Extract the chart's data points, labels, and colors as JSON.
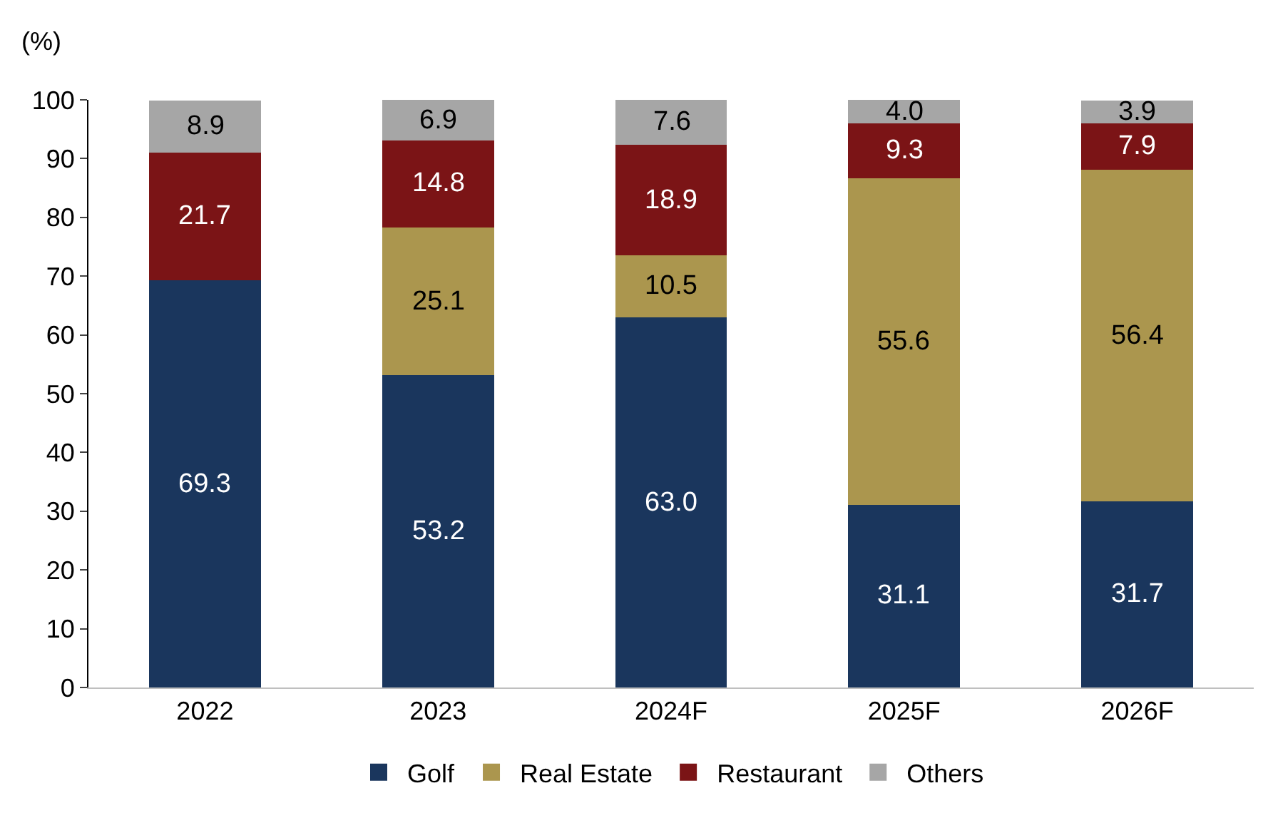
{
  "chart_data": {
    "type": "bar",
    "stacked": true,
    "ylabel": "(%)",
    "categories": [
      "2022",
      "2023",
      "2024F",
      "2025F",
      "2026F"
    ],
    "series": [
      {
        "name": "Golf",
        "color": "#1a365d",
        "values": [
          69.3,
          53.2,
          63.0,
          31.1,
          31.7
        ],
        "value_labels": [
          "69.3",
          "53.2",
          "63.0",
          "31.1",
          "31.7"
        ]
      },
      {
        "name": "Real Estate",
        "color": "#ab964e",
        "values": [
          null,
          25.1,
          10.5,
          55.6,
          56.4
        ],
        "value_labels": [
          null,
          "25.1",
          "10.5",
          "55.6",
          "56.4"
        ]
      },
      {
        "name": "Restaurant",
        "color": "#7b1416",
        "values": [
          21.7,
          14.8,
          18.9,
          9.3,
          7.9
        ],
        "value_labels": [
          "21.7",
          "14.8",
          "18.9",
          "9.3",
          "7.9"
        ]
      },
      {
        "name": "Others",
        "color": "#a6a6a6",
        "values": [
          8.9,
          6.9,
          7.6,
          4.0,
          3.9
        ],
        "value_labels": [
          "8.9",
          "6.9",
          "7.6",
          "4.0",
          "3.9"
        ]
      }
    ],
    "ylim": [
      0,
      100
    ],
    "yticks": [
      0,
      10,
      20,
      30,
      40,
      50,
      60,
      70,
      80,
      90,
      100
    ],
    "grid": false,
    "legend": "bottom"
  }
}
